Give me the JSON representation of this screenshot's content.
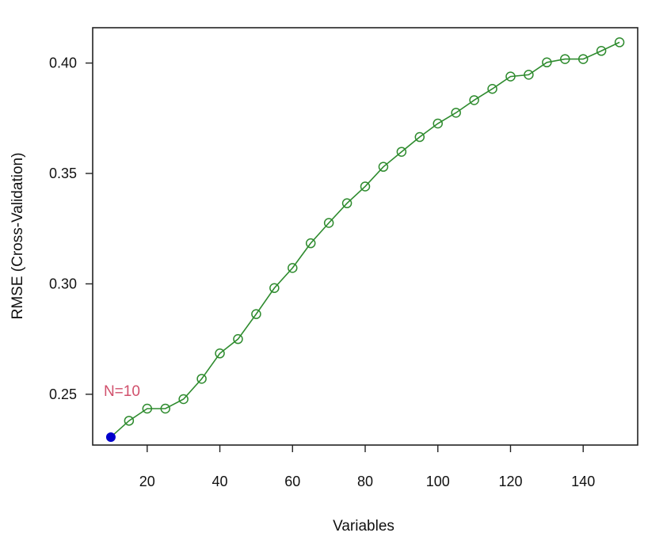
{
  "chart_data": {
    "type": "line",
    "title": "",
    "xlabel": "Variables",
    "ylabel": "RMSE (Cross-Validation)",
    "xlim": [
      5,
      155
    ],
    "ylim": [
      0.227,
      0.416
    ],
    "x_ticks": [
      20,
      40,
      60,
      80,
      100,
      120,
      140
    ],
    "x_tick_labels": [
      "20",
      "40",
      "60",
      "80",
      "100",
      "120",
      "140"
    ],
    "y_ticks": [
      0.25,
      0.3,
      0.35,
      0.4
    ],
    "y_tick_labels": [
      "0.25",
      "0.30",
      "0.35",
      "0.40"
    ],
    "grid": false,
    "series": [
      {
        "color": "#2e8b2e",
        "marker": "open-circle",
        "x": [
          10,
          15,
          20,
          25,
          30,
          35,
          40,
          45,
          50,
          55,
          60,
          65,
          70,
          75,
          80,
          85,
          90,
          95,
          100,
          105,
          110,
          115,
          120,
          125,
          130,
          135,
          140,
          145,
          150
        ],
        "y": [
          0.2306,
          0.238,
          0.2435,
          0.2435,
          0.2478,
          0.257,
          0.2685,
          0.275,
          0.2863,
          0.2981,
          0.3072,
          0.3184,
          0.3276,
          0.3365,
          0.3441,
          0.353,
          0.3598,
          0.3665,
          0.3726,
          0.3775,
          0.3832,
          0.3883,
          0.3939,
          0.3947,
          0.4003,
          0.4018,
          0.4018,
          0.4055,
          0.4094
        ]
      }
    ],
    "highlight": {
      "x": 10,
      "y": 0.2306,
      "color": "#0000cc",
      "label": "N=10",
      "label_color": "#d1506c"
    }
  }
}
